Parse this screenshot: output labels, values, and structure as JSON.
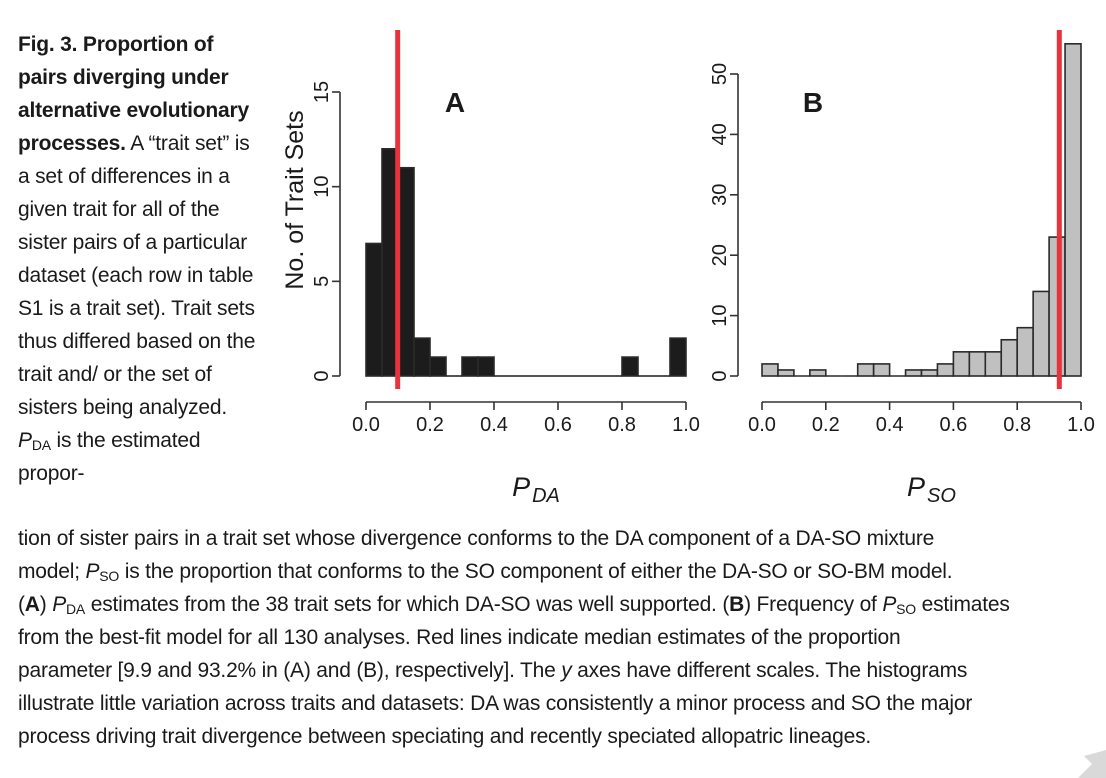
{
  "caption": {
    "fig_label": "Fig. 3. Proportion of pairs diverging under alternative evolutionary processes.",
    "side_text": " A “trait set” is a set of differences in a given trait for all of the sister pairs of a particular dataset (each row in table S1 is a trait set). Trait sets thus differed based on the trait and/ or the set of sisters being analyzed.",
    "p_da_sym": "P",
    "p_da_sub": "DA",
    "side_tail": " is the estimated propor-",
    "line1": "tion of sister pairs in a trait set whose divergence conforms to the DA component of a DA-SO mixture",
    "line2a": "model; ",
    "p_so_sym": "P",
    "p_so_sub": "SO",
    "line2b": " is the proportion that conforms to the SO component of either the DA-SO or SO-BM model.",
    "panel_a_open": "(",
    "panel_a_letter": "A",
    "panel_a_close": ") ",
    "line3b": " estimates from the 38 trait sets for which DA-SO was well supported. (",
    "panel_b_letter": "B",
    "line3c": ") Frequency of ",
    "line3d": " estimates",
    "line4": "from the best-fit model for all 130 analyses. Red lines indicate median estimates of the proportion",
    "line5": "parameter [9.9 and 93.2% in (A) and (B), respectively]. The ",
    "y_italic": "y",
    "line5b": " axes have different scales. The histograms",
    "line6": "illustrate little variation across traits and datasets: DA was consistently a minor process and SO the major",
    "line7": "process driving trait divergence between speciating and recently speciated allopatric lineages."
  },
  "colors": {
    "bars_a": "#1c1c1c",
    "bars_b": "#c0c0c0",
    "median_line": "#e8323c",
    "axis": "#333333"
  },
  "chart_data": [
    {
      "type": "bar",
      "panel_label": "A",
      "xlabel": "P",
      "xlabel_sub": "DA",
      "ylabel": "No. of Trait Sets",
      "xlim": [
        0,
        1
      ],
      "ylim": [
        0,
        15
      ],
      "xticks": [
        "0.0",
        "0.2",
        "0.4",
        "0.6",
        "0.8",
        "1.0"
      ],
      "yticks": [
        "0",
        "5",
        "10",
        "15"
      ],
      "bin_width": 0.05,
      "bin_starts": [
        0.0,
        0.05,
        0.1,
        0.15,
        0.2,
        0.25,
        0.3,
        0.35,
        0.4,
        0.45,
        0.5,
        0.55,
        0.6,
        0.65,
        0.7,
        0.75,
        0.8,
        0.85,
        0.9,
        0.95
      ],
      "values": [
        7,
        12,
        11,
        2,
        1,
        0,
        1,
        1,
        0,
        0,
        0,
        0,
        0,
        0,
        0,
        0,
        1,
        0,
        0,
        2
      ],
      "median": 0.099
    },
    {
      "type": "bar",
      "panel_label": "B",
      "xlabel": "P",
      "xlabel_sub": "SO",
      "ylabel": "",
      "xlim": [
        0,
        1
      ],
      "ylim": [
        0,
        50
      ],
      "xticks": [
        "0.0",
        "0.2",
        "0.4",
        "0.6",
        "0.8",
        "1.0"
      ],
      "yticks": [
        "0",
        "10",
        "20",
        "30",
        "40",
        "50"
      ],
      "bin_width": 0.05,
      "bin_starts": [
        0.0,
        0.05,
        0.1,
        0.15,
        0.2,
        0.25,
        0.3,
        0.35,
        0.4,
        0.45,
        0.5,
        0.55,
        0.6,
        0.65,
        0.7,
        0.75,
        0.8,
        0.85,
        0.9,
        0.95
      ],
      "values": [
        2,
        1,
        0,
        1,
        0,
        0,
        2,
        2,
        0,
        1,
        1,
        2,
        4,
        4,
        4,
        6,
        8,
        14,
        23,
        55
      ],
      "median": 0.932
    }
  ]
}
